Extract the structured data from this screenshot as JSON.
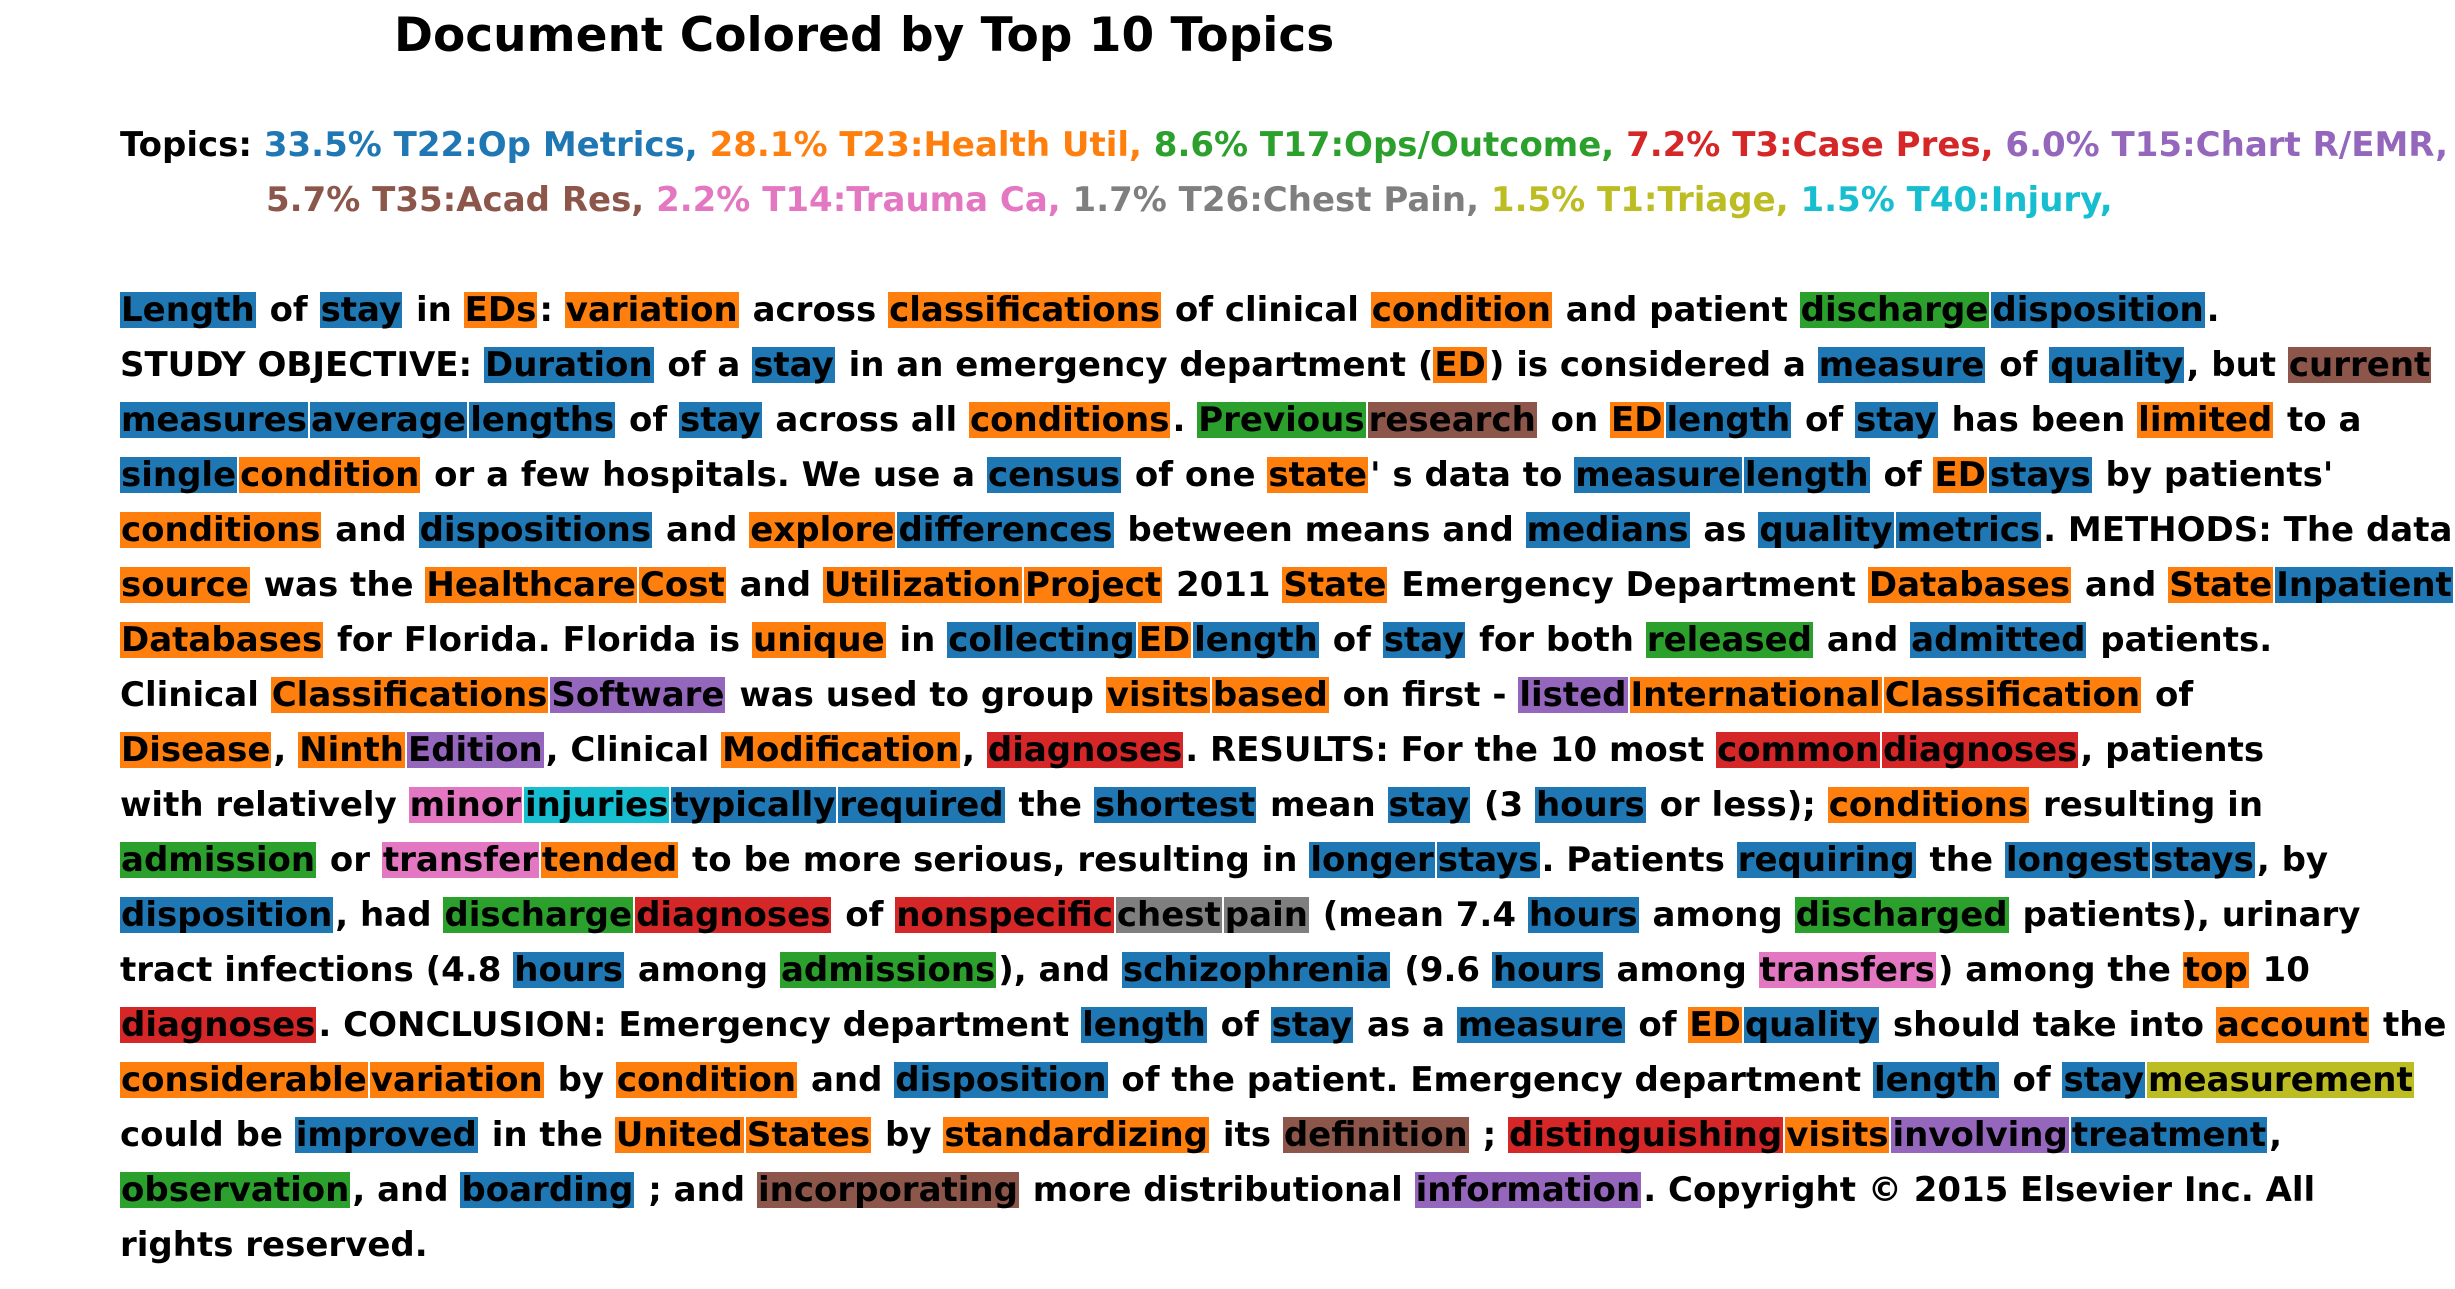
{
  "title": "Document Colored by Top 10 Topics",
  "topics_label": "Topics:",
  "colors": {
    "T22": "#1f77b4",
    "T23": "#ff7f0e",
    "T17": "#2ca02c",
    "T3": "#d62728",
    "T15": "#9467bd",
    "T35": "#8c564b",
    "T14": "#e377c2",
    "T26": "#7f7f7f",
    "T1": "#bcbd22",
    "T40": "#17becf"
  },
  "topics": [
    [
      {
        "text": "33.5% T22:Op Metrics,",
        "topic": "T22"
      },
      {
        "text": "28.1% T23:Health Util,",
        "topic": "T23"
      },
      {
        "text": "8.6% T17:Ops/Outcome,",
        "topic": "T17"
      },
      {
        "text": "7.2% T3:Case Pres,",
        "topic": "T3"
      },
      {
        "text": "6.0% T15:Chart R/EMR,",
        "topic": "T15"
      }
    ],
    [
      {
        "text": "5.7% T35:Acad Res,",
        "topic": "T35"
      },
      {
        "text": "2.2% T14:Trauma Ca,",
        "topic": "T14"
      },
      {
        "text": "1.7% T26:Chest Pain,",
        "topic": "T26"
      },
      {
        "text": "1.5% T1:Triage,",
        "topic": "T1"
      },
      {
        "text": "1.5% T40:Injury,",
        "topic": "T40"
      }
    ]
  ],
  "lines": [
    [
      [
        "Length",
        "T22"
      ],
      [
        " of "
      ],
      [
        "stay",
        "T22"
      ],
      [
        " in "
      ],
      [
        "EDs",
        "T23"
      ],
      [
        ": "
      ],
      [
        "variation",
        "T23"
      ],
      [
        " across "
      ],
      [
        "classifications",
        "T23"
      ],
      [
        " of clinical "
      ],
      [
        "condition",
        "T23"
      ],
      [
        " and patient "
      ],
      [
        "discharge",
        "T17"
      ],
      [
        "disposition",
        "T22"
      ],
      [
        "."
      ]
    ],
    [
      [
        "STUDY OBJECTIVE: "
      ],
      [
        "Duration",
        "T22"
      ],
      [
        " of a "
      ],
      [
        "stay",
        "T22"
      ],
      [
        " in an emergency department ("
      ],
      [
        "ED",
        "T23"
      ],
      [
        ") is considered a "
      ],
      [
        "measure",
        "T22"
      ],
      [
        " of "
      ],
      [
        "quality",
        "T22"
      ],
      [
        ", but "
      ],
      [
        "current",
        "T35"
      ]
    ],
    [
      [
        "measures",
        "T22"
      ],
      [
        "average",
        "T22"
      ],
      [
        "lengths",
        "T22"
      ],
      [
        " of "
      ],
      [
        "stay",
        "T22"
      ],
      [
        " across all "
      ],
      [
        "conditions",
        "T23"
      ],
      [
        ". "
      ],
      [
        "Previous",
        "T17"
      ],
      [
        "research",
        "T35"
      ],
      [
        " on "
      ],
      [
        "ED",
        "T23"
      ],
      [
        "length",
        "T22"
      ],
      [
        " of "
      ],
      [
        "stay",
        "T22"
      ],
      [
        " has been "
      ],
      [
        "limited",
        "T23"
      ],
      [
        " to a"
      ]
    ],
    [
      [
        "single",
        "T22"
      ],
      [
        "condition",
        "T23"
      ],
      [
        " or a few hospitals. We use a "
      ],
      [
        "census",
        "T22"
      ],
      [
        " of one "
      ],
      [
        "state",
        "T23"
      ],
      [
        "' s data to "
      ],
      [
        "measure",
        "T22"
      ],
      [
        "length",
        "T22"
      ],
      [
        " of "
      ],
      [
        "ED",
        "T23"
      ],
      [
        "stays",
        "T22"
      ],
      [
        " by patients'"
      ]
    ],
    [
      [
        "conditions",
        "T23"
      ],
      [
        " and "
      ],
      [
        "dispositions",
        "T22"
      ],
      [
        " and "
      ],
      [
        "explore",
        "T23"
      ],
      [
        "differences",
        "T22"
      ],
      [
        " between means and "
      ],
      [
        "medians",
        "T22"
      ],
      [
        " as "
      ],
      [
        "quality",
        "T22"
      ],
      [
        "metrics",
        "T22"
      ],
      [
        ". METHODS: The data"
      ]
    ],
    [
      [
        "source",
        "T23"
      ],
      [
        " was the "
      ],
      [
        "Healthcare",
        "T23"
      ],
      [
        "Cost",
        "T23"
      ],
      [
        " and "
      ],
      [
        "Utilization",
        "T23"
      ],
      [
        "Project",
        "T23"
      ],
      [
        " 2011 "
      ],
      [
        "State",
        "T23"
      ],
      [
        " Emergency Department "
      ],
      [
        "Databases",
        "T23"
      ],
      [
        " and "
      ],
      [
        "State",
        "T23"
      ],
      [
        "Inpatient",
        "T22"
      ]
    ],
    [
      [
        "Databases",
        "T23"
      ],
      [
        " for Florida. Florida is "
      ],
      [
        "unique",
        "T23"
      ],
      [
        " in "
      ],
      [
        "collecting",
        "T22"
      ],
      [
        "ED",
        "T23"
      ],
      [
        "length",
        "T22"
      ],
      [
        " of "
      ],
      [
        "stay",
        "T22"
      ],
      [
        " for both "
      ],
      [
        "released",
        "T17"
      ],
      [
        " and "
      ],
      [
        "admitted",
        "T22"
      ],
      [
        " patients."
      ]
    ],
    [
      [
        "Clinical "
      ],
      [
        "Classifications",
        "T23"
      ],
      [
        "Software",
        "T15"
      ],
      [
        " was used to group "
      ],
      [
        "visits",
        "T23"
      ],
      [
        "based",
        "T23"
      ],
      [
        " on first - "
      ],
      [
        "listed",
        "T15"
      ],
      [
        "International",
        "T23"
      ],
      [
        "Classification",
        "T23"
      ],
      [
        " of"
      ]
    ],
    [
      [
        "Disease",
        "T23"
      ],
      [
        ", "
      ],
      [
        "Ninth",
        "T23"
      ],
      [
        "Edition",
        "T15"
      ],
      [
        ", Clinical "
      ],
      [
        "Modification",
        "T23"
      ],
      [
        ", "
      ],
      [
        "diagnoses",
        "T3"
      ],
      [
        ". RESULTS: For the 10 most "
      ],
      [
        "common",
        "T3"
      ],
      [
        "diagnoses",
        "T3"
      ],
      [
        ", patients"
      ]
    ],
    [
      [
        "with relatively "
      ],
      [
        "minor",
        "T14"
      ],
      [
        "injuries",
        "T40"
      ],
      [
        "typically",
        "T22"
      ],
      [
        "required",
        "T22"
      ],
      [
        " the "
      ],
      [
        "shortest",
        "T22"
      ],
      [
        " mean "
      ],
      [
        "stay",
        "T22"
      ],
      [
        " (3 "
      ],
      [
        "hours",
        "T22"
      ],
      [
        " or less); "
      ],
      [
        "conditions",
        "T23"
      ],
      [
        " resulting in"
      ]
    ],
    [
      [
        "admission",
        "T17"
      ],
      [
        " or "
      ],
      [
        "transfer",
        "T14"
      ],
      [
        "tended",
        "T23"
      ],
      [
        " to be more serious, resulting in "
      ],
      [
        "longer",
        "T22"
      ],
      [
        "stays",
        "T22"
      ],
      [
        ". Patients "
      ],
      [
        "requiring",
        "T22"
      ],
      [
        " the "
      ],
      [
        "longest",
        "T22"
      ],
      [
        "stays",
        "T22"
      ],
      [
        ", by"
      ]
    ],
    [
      [
        "disposition",
        "T22"
      ],
      [
        ", had "
      ],
      [
        "discharge",
        "T17"
      ],
      [
        "diagnoses",
        "T3"
      ],
      [
        " of "
      ],
      [
        "nonspecific",
        "T3"
      ],
      [
        "chest",
        "T26"
      ],
      [
        "pain",
        "T26"
      ],
      [
        " (mean 7.4 "
      ],
      [
        "hours",
        "T22"
      ],
      [
        " among "
      ],
      [
        "discharged",
        "T17"
      ],
      [
        " patients), urinary"
      ]
    ],
    [
      [
        "tract infections (4.8 "
      ],
      [
        "hours",
        "T22"
      ],
      [
        " among "
      ],
      [
        "admissions",
        "T17"
      ],
      [
        "), and "
      ],
      [
        "schizophrenia",
        "T22"
      ],
      [
        " (9.6 "
      ],
      [
        "hours",
        "T22"
      ],
      [
        " among "
      ],
      [
        "transfers",
        "T14"
      ],
      [
        ") among the "
      ],
      [
        "top",
        "T23"
      ],
      [
        " 10"
      ]
    ],
    [
      [
        "diagnoses",
        "T3"
      ],
      [
        ". CONCLUSION: Emergency department "
      ],
      [
        "length",
        "T22"
      ],
      [
        " of "
      ],
      [
        "stay",
        "T22"
      ],
      [
        " as a "
      ],
      [
        "measure",
        "T22"
      ],
      [
        " of "
      ],
      [
        "ED",
        "T23"
      ],
      [
        "quality",
        "T22"
      ],
      [
        " should take into "
      ],
      [
        "account",
        "T23"
      ],
      [
        " the"
      ]
    ],
    [
      [
        "considerable",
        "T23"
      ],
      [
        "variation",
        "T23"
      ],
      [
        " by "
      ],
      [
        "condition",
        "T23"
      ],
      [
        " and "
      ],
      [
        "disposition",
        "T22"
      ],
      [
        " of the patient. Emergency department "
      ],
      [
        "length",
        "T22"
      ],
      [
        " of "
      ],
      [
        "stay",
        "T22"
      ],
      [
        "measurement",
        "T1"
      ]
    ],
    [
      [
        "could be "
      ],
      [
        "improved",
        "T22"
      ],
      [
        " in the "
      ],
      [
        "United",
        "T23"
      ],
      [
        "States",
        "T23"
      ],
      [
        " by "
      ],
      [
        "standardizing",
        "T23"
      ],
      [
        " its "
      ],
      [
        "definition",
        "T35"
      ],
      [
        " ; "
      ],
      [
        "distinguishing",
        "T3"
      ],
      [
        "visits",
        "T23"
      ],
      [
        "involving",
        "T15"
      ],
      [
        "treatment",
        "T22"
      ],
      [
        ","
      ]
    ],
    [
      [
        "observation",
        "T17"
      ],
      [
        ", and "
      ],
      [
        "boarding",
        "T22"
      ],
      [
        " ; and "
      ],
      [
        "incorporating",
        "T35"
      ],
      [
        " more distributional "
      ],
      [
        "information",
        "T15"
      ],
      [
        ". Copyright © 2015 Elsevier Inc. All"
      ]
    ],
    [
      [
        "rights reserved."
      ]
    ]
  ]
}
